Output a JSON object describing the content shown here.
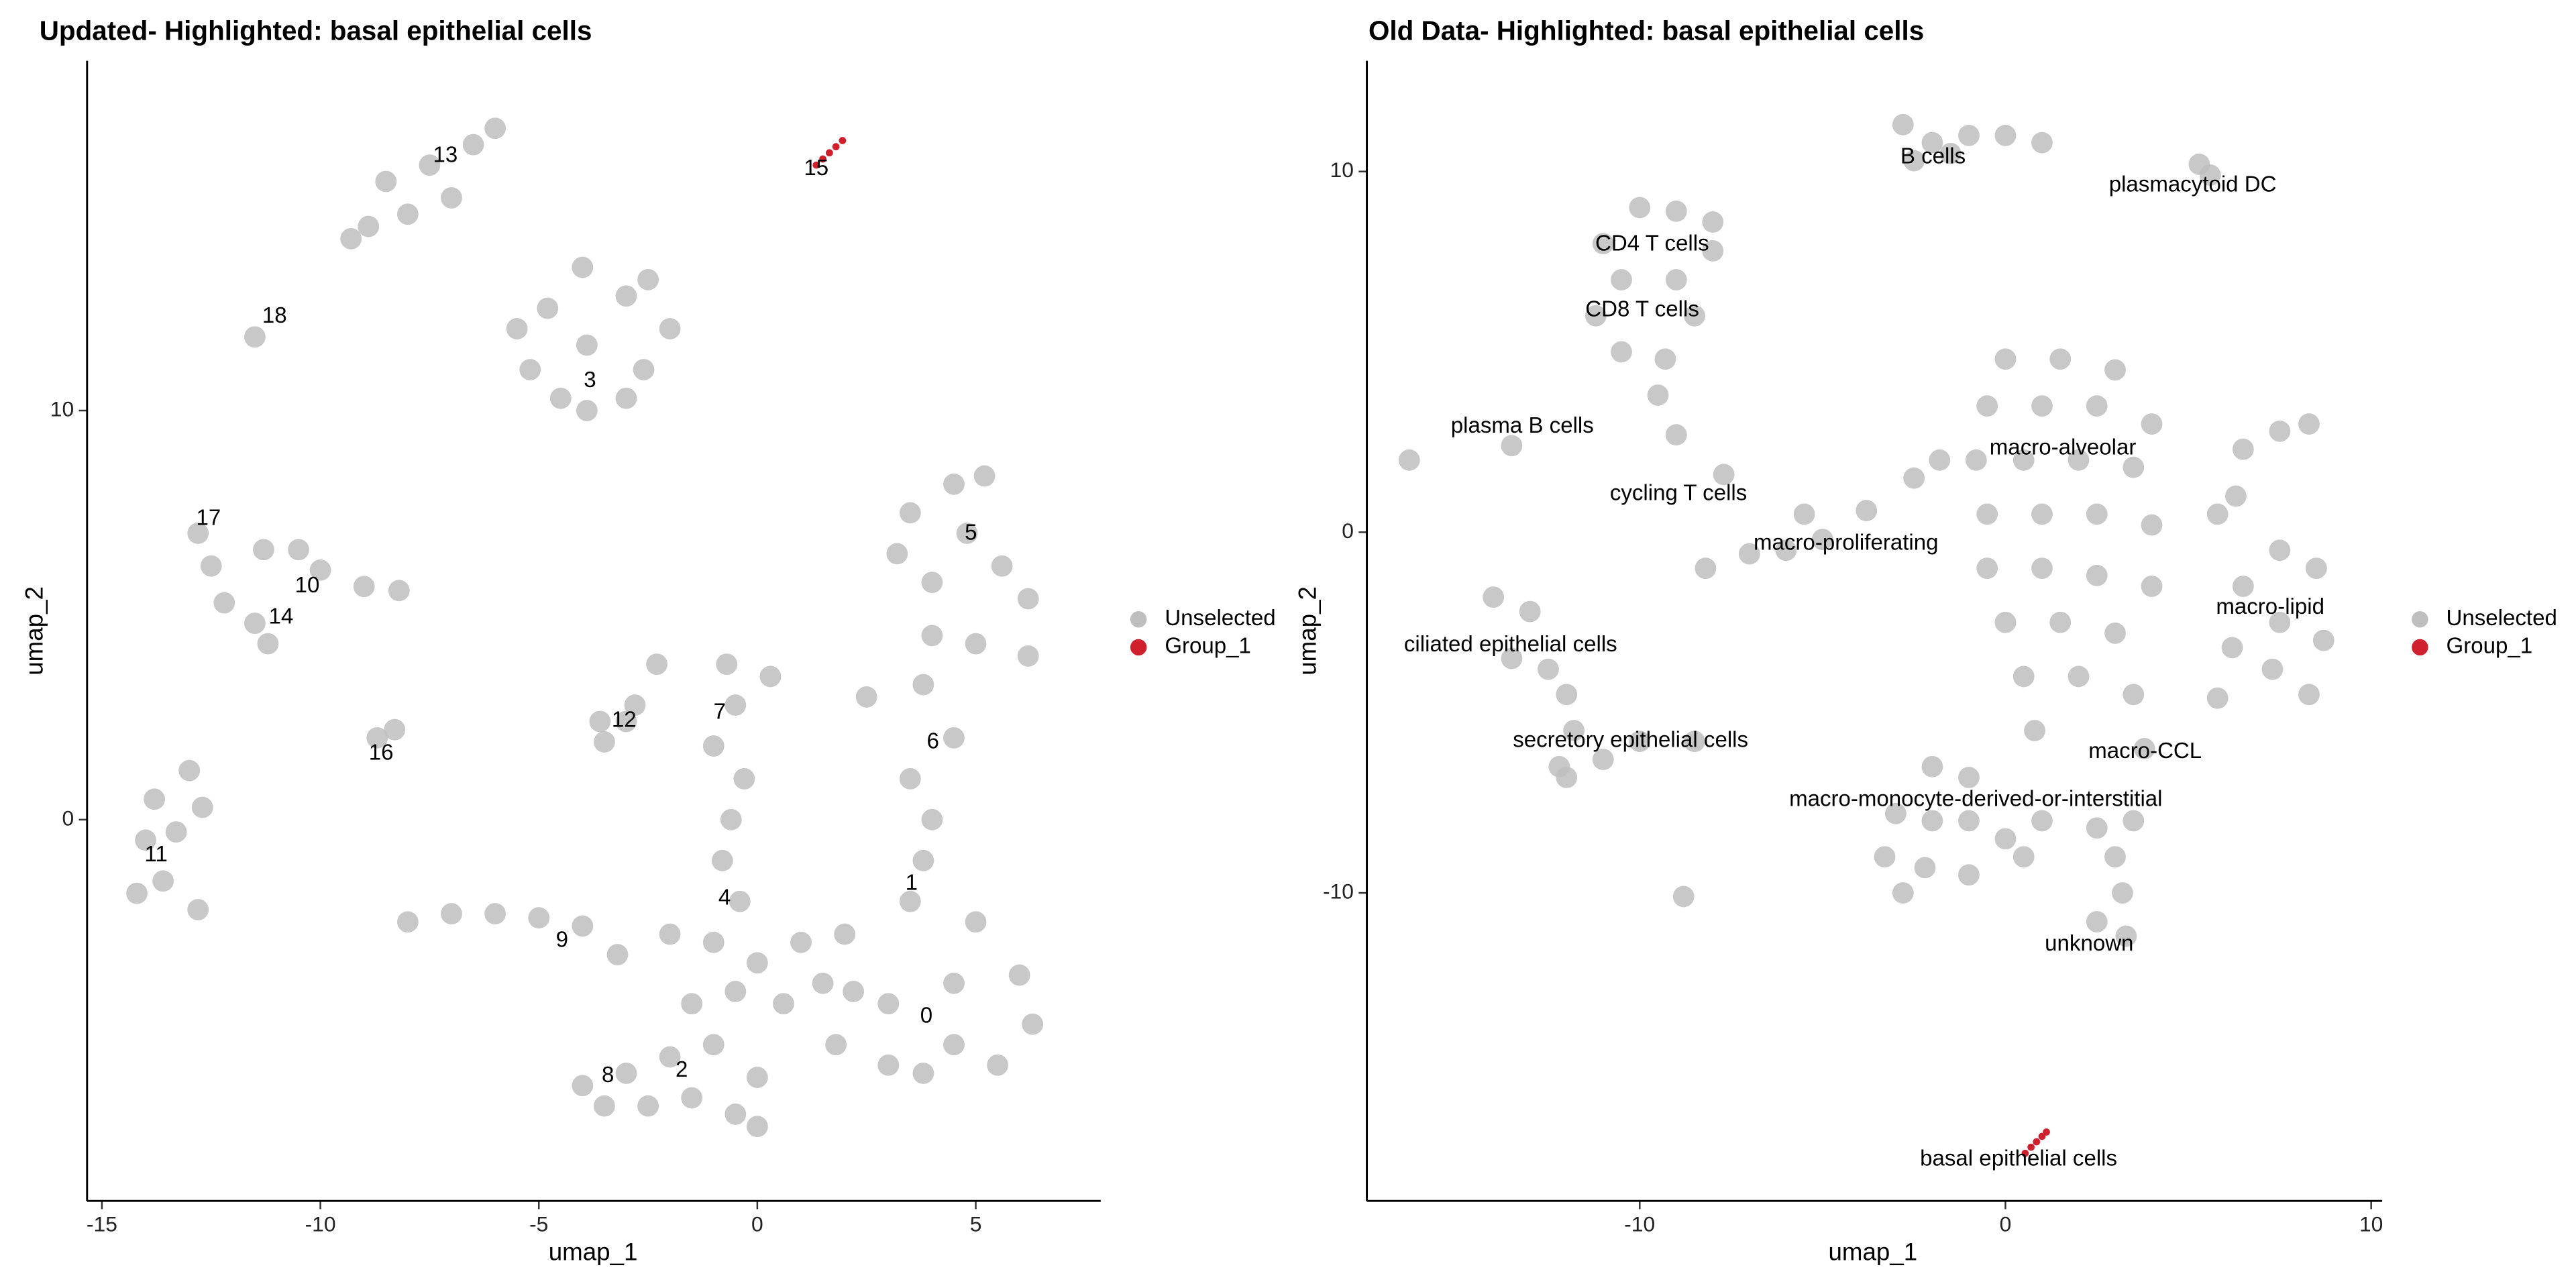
{
  "chart_data": [
    {
      "type": "scatter",
      "title": "Updated- Highlighted: basal epithelial cells",
      "x_label": "umap_1",
      "y_label": "umap_2",
      "xlim": [
        -15.34,
        7.86
      ],
      "ylim": [
        -9.32,
        18.55
      ],
      "xticks": [
        -15,
        -10,
        -5,
        0,
        5
      ],
      "yticks": [
        0,
        10
      ],
      "grid": false,
      "legend_position": "right",
      "series": [
        {
          "name": "Unselected",
          "color": "#bebebe",
          "x": [
            -8.5,
            -7.5,
            -6.5,
            -6,
            -8,
            -7,
            -8.9,
            -9.3,
            -11.5,
            -3.9,
            -5.2,
            -2.6,
            -3.9,
            -3,
            -4.8,
            -2.5,
            -4.5,
            -3,
            -2,
            -5.5,
            -4,
            -11.3,
            -10,
            -9,
            -12.5,
            -12.2,
            -11.5,
            -11.2,
            -8.2,
            -10.5,
            -12.8,
            -8.7,
            -8.3,
            -3.6,
            -3,
            -3.5,
            -2.8,
            -2.3,
            -13.8,
            -14,
            -13.3,
            -12.7,
            -13.6,
            -14.2,
            -13,
            -12.8,
            -0.7,
            -0.5,
            -1,
            -0.3,
            -0.6,
            -0.8,
            -0.4,
            -1,
            0,
            0.3,
            4.5,
            5.2,
            3.5,
            4.8,
            5.6,
            3.2,
            4,
            6.2,
            4,
            5,
            6.2,
            3.8,
            4.5,
            3.5,
            4,
            3.8,
            2.5,
            3.5,
            2,
            5,
            1.5,
            3,
            4.5,
            6,
            6.3,
            4.5,
            3,
            1.8,
            5.5,
            3.8,
            2.2,
            0.6,
            1,
            -8,
            -7,
            -6,
            -5,
            -4,
            -3.2,
            -2,
            -4,
            -3,
            -2,
            -1,
            0,
            -1.5,
            -0.5,
            -2.5,
            -3.5,
            0,
            -1.5,
            -0.5
          ],
          "y": [
            15.6,
            16,
            16.5,
            16.9,
            14.8,
            15.2,
            14.5,
            14.2,
            11.8,
            11.6,
            11,
            11,
            10,
            12.8,
            12.5,
            13.2,
            10.3,
            10.3,
            12,
            12,
            13.5,
            6.6,
            6.1,
            5.7,
            6.2,
            5.3,
            4.8,
            4.3,
            5.6,
            6.6,
            7,
            2,
            2.2,
            2.4,
            2.4,
            1.9,
            2.8,
            3.8,
            0.5,
            -0.5,
            -0.3,
            0.3,
            -1.5,
            -1.8,
            1.2,
            -2.2,
            3.8,
            2.8,
            1.8,
            1,
            0,
            -1,
            -2,
            -3,
            -3.5,
            3.5,
            8.2,
            8.4,
            7.5,
            7,
            6.2,
            6.5,
            5.8,
            5.4,
            4.5,
            4.3,
            4,
            3.3,
            2,
            1,
            0,
            -1,
            3,
            -2,
            -2.8,
            -2.5,
            -4,
            -4.5,
            -4,
            -3.8,
            -5,
            -5.5,
            -6,
            -5.5,
            -6,
            -6.2,
            -4.2,
            -4.5,
            -3,
            -2.5,
            -2.3,
            -2.3,
            -2.4,
            -2.6,
            -3.3,
            -2.8,
            -6.5,
            -6.2,
            -5.8,
            -5.5,
            -6.3,
            -6.8,
            -7.2,
            -7,
            -7,
            -7.5,
            -4.5,
            -4.2
          ]
        },
        {
          "name": "Group_1",
          "color": "#d0202e",
          "x": [
            1.35,
            1.5,
            1.65,
            1.8,
            1.95
          ],
          "y": [
            16,
            16.15,
            16.3,
            16.45,
            16.6
          ]
        }
      ],
      "annotations": [
        {
          "text": "13",
          "x": -7.14,
          "y": 16.22
        },
        {
          "text": "15",
          "x": 1.35,
          "y": 15.9
        },
        {
          "text": "18",
          "x": -11.05,
          "y": 12.29
        },
        {
          "text": "3",
          "x": -3.83,
          "y": 10.72
        },
        {
          "text": "17",
          "x": -12.56,
          "y": 7.35
        },
        {
          "text": "10",
          "x": -10.3,
          "y": 5.7
        },
        {
          "text": "14",
          "x": -10.9,
          "y": 4.94
        },
        {
          "text": "5",
          "x": 4.89,
          "y": 6.99
        },
        {
          "text": "12",
          "x": -3.05,
          "y": 2.41
        },
        {
          "text": "7",
          "x": -0.86,
          "y": 2.61
        },
        {
          "text": "16",
          "x": -8.61,
          "y": 1.61
        },
        {
          "text": "6",
          "x": 4.02,
          "y": 1.89
        },
        {
          "text": "11",
          "x": -13.76,
          "y": -0.88
        },
        {
          "text": "1",
          "x": 3.53,
          "y": -1.57
        },
        {
          "text": "4",
          "x": -0.75,
          "y": -1.93
        },
        {
          "text": "9",
          "x": -4.47,
          "y": -2.97
        },
        {
          "text": "0",
          "x": 3.87,
          "y": -4.82
        },
        {
          "text": "2",
          "x": -1.73,
          "y": -6.14
        },
        {
          "text": "8",
          "x": -3.42,
          "y": -6.27
        }
      ]
    },
    {
      "type": "scatter",
      "title": "Old Data- Highlighted: basal epithelial cells",
      "x_label": "umap_1",
      "y_label": "umap_2",
      "xlim": [
        -17.46,
        10.3
      ],
      "ylim": [
        -18.54,
        13.07
      ],
      "xticks": [
        -10,
        0,
        10
      ],
      "yticks": [
        -10,
        0,
        10
      ],
      "grid": false,
      "legend_position": "right",
      "series": [
        {
          "name": "Unselected",
          "color": "#bebebe",
          "x": [
            -2.8,
            -2,
            -1,
            0,
            1,
            -2.5,
            -1.5,
            5.3,
            5.6,
            -10,
            -9,
            -8,
            -11,
            -8,
            -10.5,
            -9,
            -11.2,
            -8.5,
            -10.5,
            -9.3,
            -9.5,
            -9,
            -16.3,
            -13.5,
            -8.2,
            -7,
            -6,
            -5,
            -3.8,
            -2.5,
            -1.8,
            -5.5,
            -7.7,
            0,
            1.5,
            3,
            -0.5,
            1,
            2.5,
            4,
            -0.8,
            0.5,
            2,
            3.5,
            -0.5,
            1,
            2.5,
            4,
            -0.5,
            1,
            2.5,
            4,
            0,
            1.5,
            3,
            0.5,
            2,
            3.5,
            3.8,
            0.8,
            7.5,
            8.5,
            6.5,
            7.5,
            8.7,
            6.2,
            7.3,
            8.3,
            5.8,
            6.5,
            7.5,
            8.3,
            6.3,
            5.8,
            -14,
            -13,
            -13.5,
            -12.5,
            -12,
            -11.8,
            -12,
            -11,
            -10,
            -8.5,
            -12.2,
            -2,
            -1,
            -3,
            -2,
            -1,
            0,
            -3.3,
            -2.2,
            -1,
            0.5,
            -2.8,
            1,
            2.5,
            3,
            3.2,
            2.5,
            3.3,
            3.5,
            -8.8
          ],
          "y": [
            11.3,
            10.8,
            11,
            11,
            10.8,
            10.3,
            10.5,
            10.2,
            9.9,
            9,
            8.9,
            8.6,
            8,
            7.8,
            7,
            7,
            6,
            6,
            5,
            4.8,
            3.8,
            2.7,
            2,
            2.4,
            -1,
            -0.6,
            -0.5,
            -0.2,
            0.6,
            1.5,
            2,
            0.5,
            1.6,
            4.8,
            4.8,
            4.5,
            3.5,
            3.5,
            3.5,
            3,
            2,
            2,
            2,
            1.8,
            0.5,
            0.5,
            0.5,
            0.2,
            -1,
            -1,
            -1.2,
            -1.5,
            -2.5,
            -2.5,
            -2.8,
            -4,
            -4,
            -4.5,
            -6,
            -5.5,
            -0.5,
            -1,
            -1.5,
            -2.5,
            -3,
            -3.2,
            -3.8,
            -4.5,
            -4.6,
            2.3,
            2.8,
            3,
            1,
            0.5,
            -1.8,
            -2.2,
            -3.5,
            -3.8,
            -4.5,
            -5.5,
            -6.8,
            -6.3,
            -5.8,
            -5.8,
            -6.5,
            -6.5,
            -6.8,
            -7.8,
            -8,
            -8,
            -8.5,
            -9,
            -9.3,
            -9.5,
            -9,
            -10,
            -8,
            -8.2,
            -9,
            -10,
            -10.8,
            -11.2,
            -8,
            -10.1
          ]
        },
        {
          "name": "Group_1",
          "color": "#d0202e",
          "x": [
            0.54,
            0.7,
            0.85,
            1,
            1.12
          ],
          "y": [
            -17.22,
            -17.05,
            -16.9,
            -16.75,
            -16.63
          ]
        }
      ],
      "annotations": [
        {
          "text": "B cells",
          "x": -1.98,
          "y": 10.39
        },
        {
          "text": "plasmacytoid DC",
          "x": 5.12,
          "y": 9.61
        },
        {
          "text": "CD4 T cells",
          "x": -9.66,
          "y": 7.97
        },
        {
          "text": "CD8 T cells",
          "x": -9.93,
          "y": 6.15
        },
        {
          "text": "plasma B cells",
          "x": -13.21,
          "y": 2.92
        },
        {
          "text": "macro-alveolar",
          "x": 1.57,
          "y": 2.32
        },
        {
          "text": "cycling T cells",
          "x": -8.94,
          "y": 1.05
        },
        {
          "text": "macro-proliferating",
          "x": -4.36,
          "y": -0.32
        },
        {
          "text": "macro-lipid",
          "x": 7.24,
          "y": -2.1
        },
        {
          "text": "ciliated epithelial cells",
          "x": -13.53,
          "y": -3.14
        },
        {
          "text": "secretory epithelial cells",
          "x": -10.25,
          "y": -5.79
        },
        {
          "text": "macro-CCL",
          "x": 3.82,
          "y": -6.1
        },
        {
          "text": "macro-monocyte-derived-or-interstitial",
          "x": -0.81,
          "y": -7.43
        },
        {
          "text": "unknown",
          "x": 2.29,
          "y": -11.44
        },
        {
          "text": "basal epithelial cells",
          "x": 0.36,
          "y": -17.4
        }
      ]
    }
  ]
}
